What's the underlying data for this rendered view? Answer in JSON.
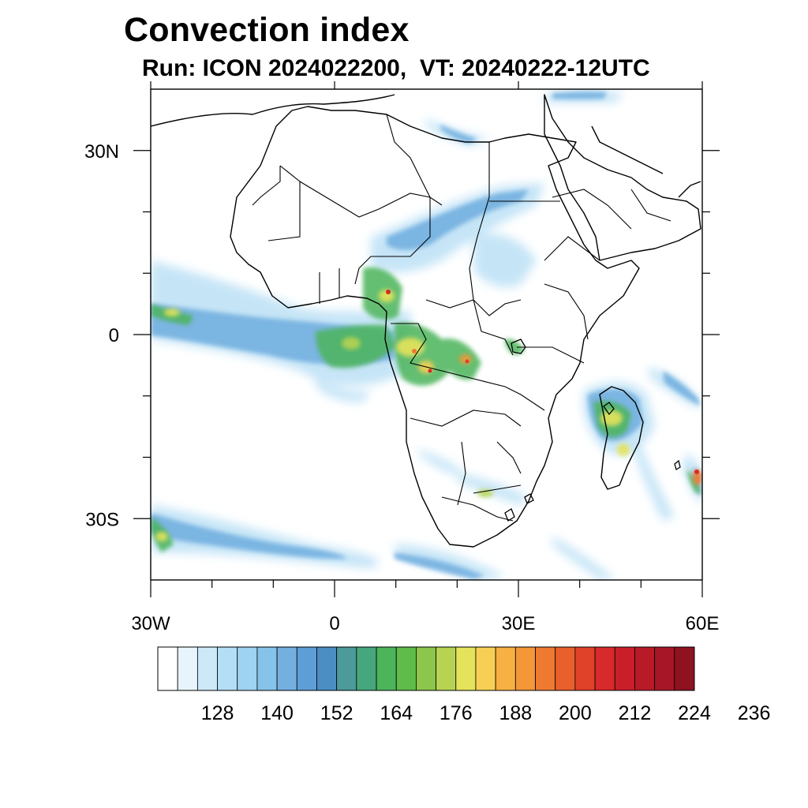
{
  "title": "Convection index",
  "subtitle": "Run: ICON 2024022200,  VT: 20240222-12UTC",
  "map": {
    "lon_range": [
      -30,
      60
    ],
    "lat_range": [
      -40,
      40
    ],
    "lon_ticks": [
      {
        "value": -30,
        "label": "30W"
      },
      {
        "value": 0,
        "label": "0"
      },
      {
        "value": 30,
        "label": "30E"
      },
      {
        "value": 60,
        "label": "60E"
      }
    ],
    "lat_ticks": [
      {
        "value": 30,
        "label": "30N"
      },
      {
        "value": 0,
        "label": "0"
      },
      {
        "value": -30,
        "label": "30S"
      }
    ],
    "minor_lon_ticks": [
      -20,
      -10,
      10,
      20,
      40,
      50
    ],
    "minor_lat_ticks": [
      20,
      10,
      -10,
      -20
    ]
  },
  "colorbar": {
    "colors": [
      "#ffffff",
      "#e8f4fc",
      "#cde8f7",
      "#b4def5",
      "#9ed3f1",
      "#86c3ea",
      "#73b0e0",
      "#5e9ed6",
      "#4a8ec4",
      "#4c9a9a",
      "#46a77c",
      "#4cb45a",
      "#5fbb4a",
      "#8cc64c",
      "#b6d352",
      "#e5e35b",
      "#f7cf55",
      "#f7b043",
      "#f39739",
      "#ee7a32",
      "#e8602c",
      "#e04229",
      "#d82a2a",
      "#c91f2a",
      "#b81a28",
      "#a61626",
      "#8e1220"
    ],
    "labels": [
      "128",
      "140",
      "152",
      "164",
      "176",
      "188",
      "200",
      "212",
      "224",
      "236"
    ]
  }
}
